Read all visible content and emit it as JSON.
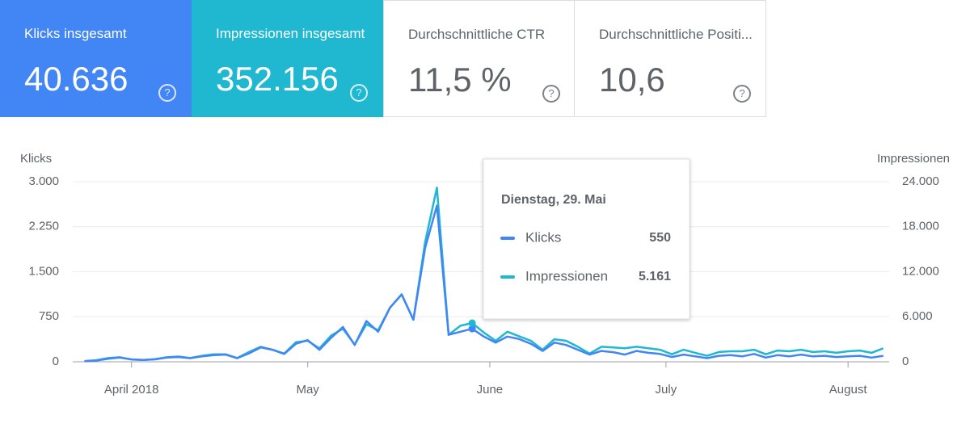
{
  "cards": [
    {
      "label": "Klicks insgesamt",
      "value": "40.636"
    },
    {
      "label": "Impressionen insgesamt",
      "value": "352.156"
    },
    {
      "label": "Durchschnittliche CTR",
      "value": "11,5 %"
    },
    {
      "label": "Durchschnittliche Positi...",
      "value": "10,6"
    }
  ],
  "chart_data": {
    "type": "line",
    "ylabel": "Klicks",
    "y2label": "Impressionen",
    "x": [
      "2018-03-24",
      "2018-03-26",
      "2018-03-28",
      "2018-03-30",
      "2018-04-01",
      "2018-04-03",
      "2018-04-05",
      "2018-04-07",
      "2018-04-09",
      "2018-04-11",
      "2018-04-13",
      "2018-04-15",
      "2018-04-17",
      "2018-04-19",
      "2018-04-21",
      "2018-04-23",
      "2018-04-25",
      "2018-04-27",
      "2018-04-29",
      "2018-05-01",
      "2018-05-03",
      "2018-05-05",
      "2018-05-07",
      "2018-05-09",
      "2018-05-11",
      "2018-05-13",
      "2018-05-15",
      "2018-05-17",
      "2018-05-19",
      "2018-05-21",
      "2018-05-23",
      "2018-05-25",
      "2018-05-27",
      "2018-05-29",
      "2018-05-31",
      "2018-06-02",
      "2018-06-04",
      "2018-06-06",
      "2018-06-08",
      "2018-06-10",
      "2018-06-12",
      "2018-06-14",
      "2018-06-16",
      "2018-06-18",
      "2018-06-20",
      "2018-06-22",
      "2018-06-24",
      "2018-06-26",
      "2018-06-28",
      "2018-06-30",
      "2018-07-02",
      "2018-07-04",
      "2018-07-06",
      "2018-07-08",
      "2018-07-10",
      "2018-07-12",
      "2018-07-14",
      "2018-07-16",
      "2018-07-18",
      "2018-07-20",
      "2018-07-22",
      "2018-07-24",
      "2018-07-26",
      "2018-07-28",
      "2018-07-30",
      "2018-08-01",
      "2018-08-03",
      "2018-08-05",
      "2018-08-07"
    ],
    "series": [
      {
        "name": "Klicks",
        "color": "#4285f4",
        "values": [
          10,
          20,
          50,
          70,
          40,
          30,
          40,
          70,
          80,
          60,
          90,
          110,
          120,
          60,
          140,
          240,
          200,
          130,
          300,
          360,
          200,
          400,
          580,
          280,
          680,
          500,
          900,
          1120,
          700,
          1900,
          2600,
          450,
          500,
          550,
          420,
          320,
          420,
          380,
          300,
          180,
          320,
          280,
          200,
          120,
          180,
          160,
          120,
          180,
          150,
          130,
          80,
          120,
          90,
          60,
          100,
          110,
          90,
          130,
          70,
          110,
          90,
          120,
          90,
          100,
          80,
          90,
          100,
          70,
          100
        ]
      },
      {
        "name": "Impressionen",
        "color": "#1fb8d0",
        "axis": "y2",
        "values": [
          100,
          200,
          500,
          600,
          300,
          250,
          350,
          600,
          700,
          500,
          800,
          1000,
          1000,
          500,
          1300,
          2000,
          1600,
          1100,
          2600,
          2800,
          1800,
          3500,
          4400,
          2300,
          5000,
          4200,
          7200,
          9000,
          5600,
          16000,
          23200,
          3600,
          4800,
          5161,
          3900,
          2800,
          4000,
          3400,
          2800,
          1600,
          3000,
          2800,
          2000,
          1100,
          2000,
          1900,
          1800,
          2000,
          1800,
          1600,
          1000,
          1600,
          1200,
          800,
          1300,
          1400,
          1400,
          1600,
          1000,
          1500,
          1400,
          1600,
          1300,
          1400,
          1200,
          1400,
          1500,
          1200,
          1800
        ]
      }
    ],
    "xlim": [
      "2018-03-22",
      "2018-08-08"
    ],
    "xticks": [
      {
        "value": "2018-04-01",
        "label": "April 2018"
      },
      {
        "value": "2018-05-01",
        "label": "May"
      },
      {
        "value": "2018-06-01",
        "label": "June"
      },
      {
        "value": "2018-07-01",
        "label": "July"
      },
      {
        "value": "2018-08-01",
        "label": "August"
      }
    ],
    "ylim": [
      0,
      3000
    ],
    "yticks": [
      0,
      750,
      {
        "value": 1500,
        "label": "1.500"
      },
      {
        "value": 2250,
        "label": "2.250"
      },
      {
        "value": 3000,
        "label": "3.000"
      }
    ],
    "y2lim": [
      0,
      24000
    ],
    "y2ticks": [
      0,
      {
        "value": 6000,
        "label": "6.000"
      },
      {
        "value": 12000,
        "label": "12.000"
      },
      {
        "value": 18000,
        "label": "18.000"
      },
      {
        "value": 24000,
        "label": "24.000"
      }
    ],
    "grid": true,
    "tooltip": {
      "x": "2018-05-29",
      "title": "Dienstag, 29. Mai",
      "values": [
        550,
        5161
      ],
      "value_labels": [
        "550",
        "5.161"
      ]
    }
  }
}
